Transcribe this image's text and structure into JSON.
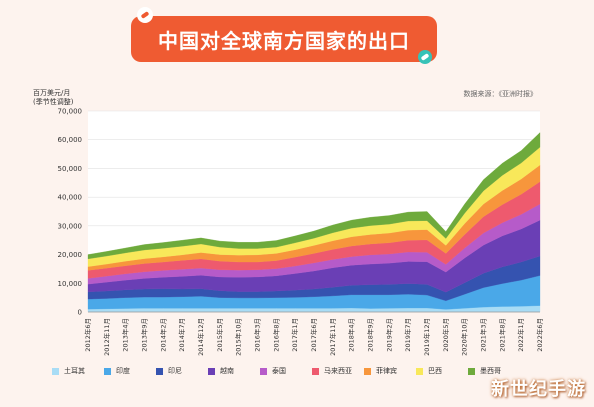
{
  "header": {
    "title": "中国对全球南方国家的出口"
  },
  "source": "数据来源：《亚洲时报》",
  "watermark": "新世纪手游",
  "chart_data": {
    "type": "area",
    "stacked": true,
    "ylabel_line1": "百万美元/月",
    "ylabel_line2": "(季节性调整)",
    "ylim": [
      0,
      70000
    ],
    "yticks": [
      "0",
      "10,000",
      "20,000",
      "30,000",
      "40,000",
      "50,000",
      "60,000",
      "70,000"
    ],
    "x_tick_labels": [
      "2012年6月",
      "2012年11月",
      "2013年4月",
      "2013年9月",
      "2014年2月",
      "2014年7月",
      "2014年12月",
      "2015年5月",
      "2015年10月",
      "2016年3月",
      "2016年8月",
      "2017年1月",
      "2017年6月",
      "2017年11月",
      "2018年4月",
      "2018年9月",
      "2019年2月",
      "2019年7月",
      "2019年12月",
      "2020年5月",
      "2020年10月",
      "2021年3月",
      "2021年8月",
      "2022年1月",
      "2022年6月"
    ],
    "legend_position": "bottom",
    "series": [
      {
        "name": "土耳其",
        "color": "#a8dcf5",
        "values": [
          1000,
          1100,
          1200,
          1300,
          1300,
          1300,
          1300,
          1300,
          1300,
          1300,
          1300,
          1300,
          1300,
          1300,
          1400,
          1200,
          1300,
          1400,
          1400,
          900,
          1300,
          1700,
          1900,
          2000,
          2200
        ]
      },
      {
        "name": "印度",
        "color": "#4aa8e8",
        "values": [
          3500,
          3600,
          3800,
          3900,
          3900,
          4000,
          4200,
          3700,
          3600,
          3600,
          3700,
          3800,
          4000,
          4300,
          4600,
          4800,
          4700,
          4800,
          4500,
          3000,
          4900,
          6800,
          8000,
          9100,
          10500
        ]
      },
      {
        "name": "印尼",
        "color": "#3553b0",
        "values": [
          2500,
          2600,
          2700,
          2800,
          2900,
          2700,
          2600,
          2400,
          2200,
          2200,
          2300,
          2500,
          2700,
          3000,
          3300,
          3500,
          3600,
          3700,
          3700,
          3000,
          4000,
          5000,
          5800,
          6300,
          6800
        ]
      },
      {
        "name": "越南",
        "color": "#6a3fb5",
        "values": [
          2700,
          3100,
          3400,
          3700,
          4000,
          4400,
          4700,
          4800,
          5000,
          5100,
          5300,
          5800,
          6300,
          6800,
          7000,
          7200,
          7400,
          7700,
          7900,
          7000,
          8600,
          9800,
          10800,
          11500,
          12500
        ]
      },
      {
        "name": "泰国",
        "color": "#b65bc9",
        "values": [
          2000,
          2100,
          2200,
          2300,
          2400,
          2500,
          2500,
          2500,
          2500,
          2500,
          2500,
          2600,
          2800,
          2900,
          3000,
          3200,
          3200,
          3300,
          3300,
          2700,
          3500,
          4200,
          4600,
          5100,
          5600
        ]
      },
      {
        "name": "马来西亚",
        "color": "#ee5a6e",
        "values": [
          2800,
          2800,
          2800,
          2900,
          2900,
          3100,
          3200,
          3000,
          2800,
          2700,
          2800,
          3100,
          3300,
          3500,
          3700,
          3800,
          3900,
          4100,
          4300,
          3800,
          4700,
          5700,
          6300,
          7000,
          7800
        ]
      },
      {
        "name": "菲律宾",
        "color": "#f7963c",
        "values": [
          1300,
          1400,
          1600,
          1700,
          1800,
          1900,
          2200,
          2300,
          2400,
          2500,
          2500,
          2600,
          2800,
          3000,
          3200,
          3300,
          3400,
          3500,
          3600,
          2800,
          3800,
          4400,
          4900,
          5300,
          5800
        ]
      },
      {
        "name": "巴西",
        "color": "#f8e85a",
        "values": [
          2700,
          2800,
          2900,
          3000,
          3000,
          3000,
          3000,
          2600,
          2300,
          2200,
          2200,
          2400,
          2500,
          2800,
          3000,
          3100,
          3100,
          3200,
          3100,
          2400,
          3600,
          4600,
          5300,
          5600,
          6200
        ]
      },
      {
        "name": "墨西哥",
        "color": "#6eaa3c",
        "values": [
          1500,
          1600,
          1700,
          1900,
          2000,
          2100,
          2100,
          2100,
          2200,
          2200,
          2300,
          2400,
          2500,
          2700,
          2800,
          2900,
          3000,
          3100,
          3200,
          2400,
          3200,
          3900,
          4200,
          4300,
          5100
        ]
      }
    ]
  }
}
